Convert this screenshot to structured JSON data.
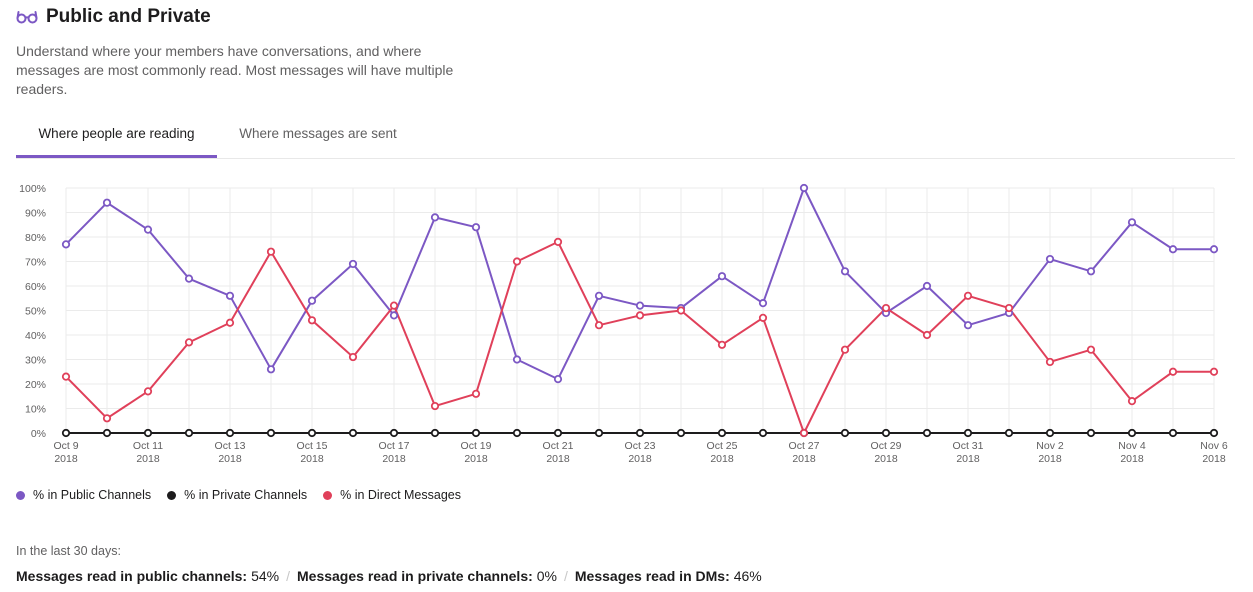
{
  "header": {
    "icon": "glasses-icon",
    "title": "Public and Private",
    "description": "Understand where your members have conversations, and where messages are most commonly read. Most messages will have multiple readers."
  },
  "tabs": [
    {
      "label": "Where people are reading",
      "active": true
    },
    {
      "label": "Where messages are sent",
      "active": false
    }
  ],
  "colors": {
    "accent": "#7c58c4",
    "public": "#7c58c4",
    "private": "#1d1c1d",
    "dm": "#e0405a"
  },
  "chart_data": {
    "type": "line",
    "y_ticks": [
      "100%",
      "90%",
      "80%",
      "70%",
      "60%",
      "50%",
      "40%",
      "30%",
      "20%",
      "10%",
      "0%"
    ],
    "ylim": [
      0,
      100
    ],
    "grid": true,
    "x": [
      "Oct 9 2018",
      "Oct 10 2018",
      "Oct 11 2018",
      "Oct 12 2018",
      "Oct 13 2018",
      "Oct 14 2018",
      "Oct 15 2018",
      "Oct 16 2018",
      "Oct 17 2018",
      "Oct 18 2018",
      "Oct 19 2018",
      "Oct 20 2018",
      "Oct 21 2018",
      "Oct 22 2018",
      "Oct 23 2018",
      "Oct 24 2018",
      "Oct 25 2018",
      "Oct 26 2018",
      "Oct 27 2018",
      "Oct 28 2018",
      "Oct 29 2018",
      "Oct 30 2018",
      "Oct 31 2018",
      "Nov 1 2018",
      "Nov 2 2018",
      "Nov 3 2018",
      "Nov 4 2018",
      "Nov 5 2018",
      "Nov 6 2018"
    ],
    "x_tick_labels": [
      {
        "line1": "Oct 9",
        "line2": "2018"
      },
      {
        "line1": "Oct 11",
        "line2": "2018"
      },
      {
        "line1": "Oct 13",
        "line2": "2018"
      },
      {
        "line1": "Oct 15",
        "line2": "2018"
      },
      {
        "line1": "Oct 17",
        "line2": "2018"
      },
      {
        "line1": "Oct 19",
        "line2": "2018"
      },
      {
        "line1": "Oct 21",
        "line2": "2018"
      },
      {
        "line1": "Oct 23",
        "line2": "2018"
      },
      {
        "line1": "Oct 25",
        "line2": "2018"
      },
      {
        "line1": "Oct 27",
        "line2": "2018"
      },
      {
        "line1": "Oct 29",
        "line2": "2018"
      },
      {
        "line1": "Oct 31",
        "line2": "2018"
      },
      {
        "line1": "Nov 2",
        "line2": "2018"
      },
      {
        "line1": "Nov 4",
        "line2": "2018"
      },
      {
        "line1": "Nov 6",
        "line2": "2018"
      }
    ],
    "legend_position": "bottom-left",
    "series": [
      {
        "name": "% in Public Channels",
        "color": "#7c58c4",
        "values": [
          77,
          94,
          83,
          63,
          56,
          26,
          54,
          69,
          48,
          88,
          84,
          30,
          22,
          56,
          52,
          51,
          64,
          53,
          100,
          66,
          49,
          60,
          44,
          49,
          71,
          66,
          86,
          75,
          75
        ]
      },
      {
        "name": "% in Private Channels",
        "color": "#1d1c1d",
        "values": [
          0,
          0,
          0,
          0,
          0,
          0,
          0,
          0,
          0,
          0,
          0,
          0,
          0,
          0,
          0,
          0,
          0,
          0,
          0,
          0,
          0,
          0,
          0,
          0,
          0,
          0,
          0,
          0,
          0
        ]
      },
      {
        "name": "% in Direct Messages",
        "color": "#e0405a",
        "values": [
          23,
          6,
          17,
          37,
          45,
          74,
          46,
          31,
          52,
          11,
          16,
          70,
          78,
          44,
          48,
          50,
          36,
          47,
          0,
          34,
          51,
          40,
          56,
          51,
          29,
          34,
          13,
          25,
          25
        ]
      }
    ]
  },
  "summary": {
    "period_label": "In the last 30 days:",
    "stats": [
      {
        "label": "Messages read in public channels:",
        "value": "54%"
      },
      {
        "label": "Messages read in private channels:",
        "value": "0%"
      },
      {
        "label": "Messages read in DMs:",
        "value": "46%"
      }
    ],
    "separator": "/"
  }
}
